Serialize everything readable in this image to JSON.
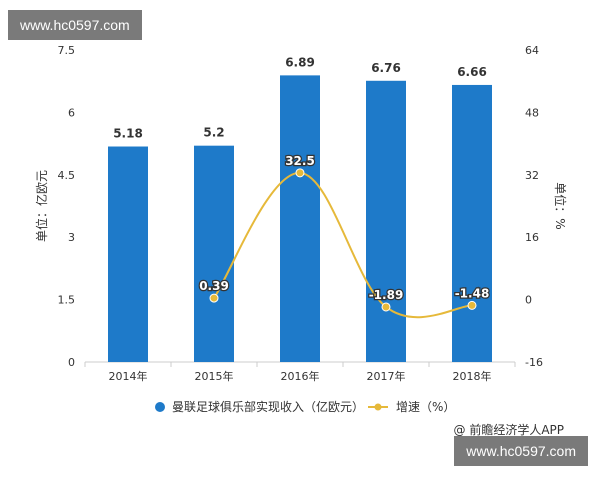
{
  "watermark": {
    "top_text": "www.hc0597.com",
    "bottom_text": "www.hc0597.com"
  },
  "credit": "@ 前瞻经济学人APP",
  "chart_data": {
    "type": "bar",
    "categories": [
      "2014年",
      "2015年",
      "2016年",
      "2017年",
      "2018年"
    ],
    "series": [
      {
        "name": "曼联足球俱乐部实现收入（亿欧元）",
        "type": "bar",
        "axis": "left",
        "values": [
          5.18,
          5.2,
          6.89,
          6.76,
          6.66
        ],
        "labels": [
          "5.18",
          "5.2",
          "6.89",
          "6.76",
          "6.66"
        ]
      },
      {
        "name": "增速（%）",
        "type": "line",
        "axis": "right",
        "values": [
          null,
          0.39,
          32.5,
          -1.89,
          -1.48
        ],
        "labels": [
          "",
          "0.39",
          "32.5",
          "-1.89",
          "-1.48"
        ]
      }
    ],
    "ylabel": "单位：亿欧元",
    "y2label": "单位：%",
    "ylim": [
      0,
      7.5
    ],
    "yticks": [
      "0",
      "1.5",
      "3",
      "4.5",
      "6",
      "7.5"
    ],
    "y2lim": [
      -16,
      64
    ],
    "y2ticks": [
      "-16",
      "0",
      "16",
      "32",
      "48",
      "64"
    ],
    "grid": false,
    "legend": "bottom",
    "colors": {
      "bar": "#1e7ac9",
      "line": "#e6b93a",
      "axis": "#cccccc",
      "text": "#333333"
    }
  }
}
